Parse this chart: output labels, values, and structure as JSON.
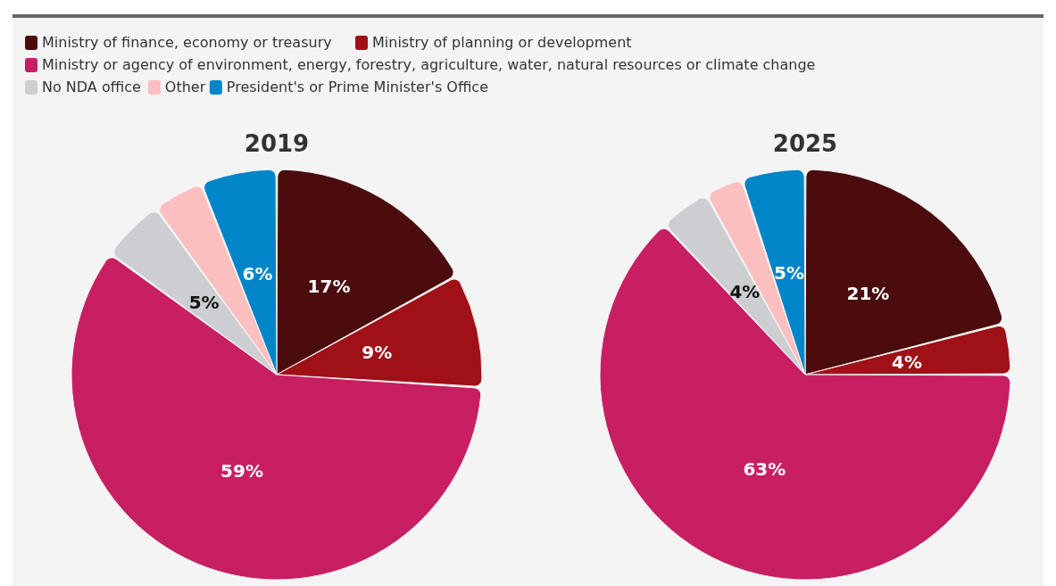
{
  "chart_data": [
    {
      "type": "pie",
      "title": "2019",
      "legend": "top",
      "categories": [
        "Ministry of finance, economy or treasury",
        "Ministry of planning or development",
        "Ministry or agency of environment, energy, forestry, agriculture, water, natural resources or climate change",
        "No NDA office",
        "Other",
        "President's or Prime Minister's Office"
      ],
      "values": [
        17,
        9,
        59,
        5,
        4,
        6
      ],
      "colors": [
        "#4a0c0c",
        "#a01017",
        "#c81e62",
        "#ccced1",
        "#fbbfc0",
        "#0085c8"
      ],
      "value_labels": [
        "17%",
        "9%",
        "59%",
        "5%",
        null,
        "6%"
      ]
    },
    {
      "type": "pie",
      "title": "2025",
      "categories": [
        null,
        null,
        null,
        null,
        null,
        null
      ],
      "values": [
        21,
        4,
        63,
        4,
        3,
        5
      ],
      "colors": [
        "#4a0c0c",
        "#a01017",
        "#c81e62",
        "#ccced1",
        "#fbbfc0",
        "#0085c8"
      ],
      "value_labels": [
        "21%",
        "4%",
        "63%",
        "4%",
        null,
        "5%"
      ]
    }
  ]
}
